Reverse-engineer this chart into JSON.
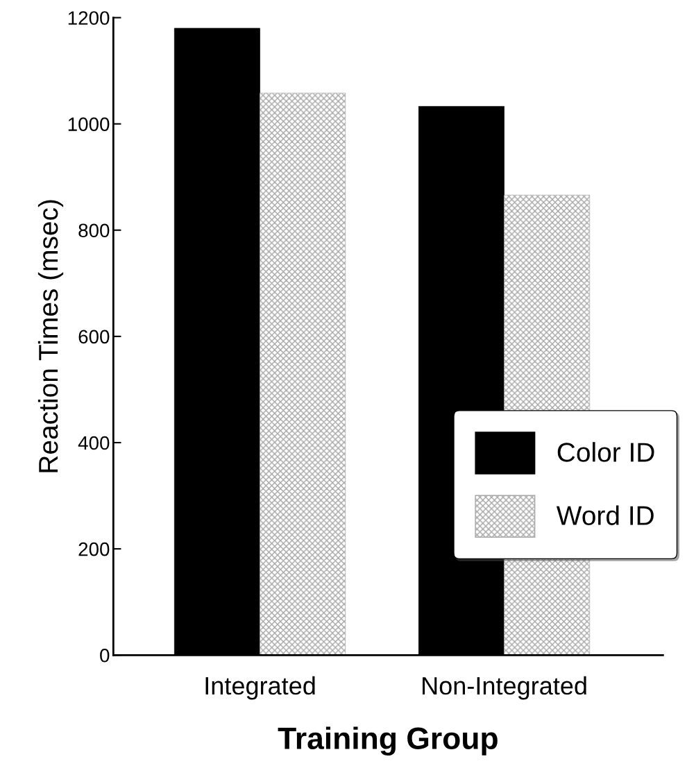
{
  "chart_data": {
    "type": "bar",
    "xlabel": "Training Group",
    "ylabel": "Reaction Times (msec)",
    "categories": [
      "Integrated",
      "Non-Integrated"
    ],
    "series": [
      {
        "name": "Color ID",
        "color": "#000000",
        "values": [
          1180,
          1033
        ]
      },
      {
        "name": "Word ID",
        "color": "#a6a6a6",
        "values": [
          1058,
          866
        ]
      }
    ],
    "ylim": [
      0,
      1200
    ],
    "yticks": [
      0,
      200,
      400,
      600,
      800,
      1000,
      1200
    ],
    "grid": false,
    "legend": "bottom right"
  }
}
